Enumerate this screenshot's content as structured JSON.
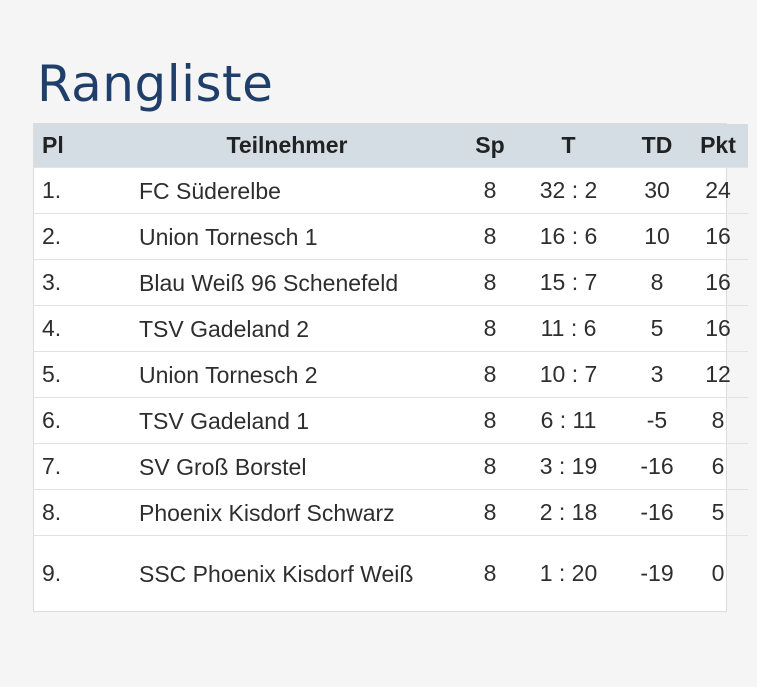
{
  "page": {
    "title": "Rangliste"
  },
  "table": {
    "headers": {
      "pl": "Pl",
      "teilnehmer": "Teilnehmer",
      "sp": "Sp",
      "t": "T",
      "td": "TD",
      "pkt": "Pkt"
    },
    "rows": [
      {
        "pl": "1.",
        "name": "FC Süderelbe",
        "sp": "8",
        "t": "32 : 2",
        "td": "30",
        "pkt": "24"
      },
      {
        "pl": "2.",
        "name": "Union Tornesch 1",
        "sp": "8",
        "t": "16 : 6",
        "td": "10",
        "pkt": "16"
      },
      {
        "pl": "3.",
        "name": "Blau Weiß 96 Schenefeld",
        "sp": "8",
        "t": "15 : 7",
        "td": "8",
        "pkt": "16"
      },
      {
        "pl": "4.",
        "name": "TSV Gadeland 2",
        "sp": "8",
        "t": "11 : 6",
        "td": "5",
        "pkt": "16"
      },
      {
        "pl": "5.",
        "name": "Union Tornesch 2",
        "sp": "8",
        "t": "10 : 7",
        "td": "3",
        "pkt": "12"
      },
      {
        "pl": "6.",
        "name": "TSV Gadeland 1",
        "sp": "8",
        "t": "6 : 11",
        "td": "-5",
        "pkt": "8"
      },
      {
        "pl": "7.",
        "name": "SV Groß Borstel",
        "sp": "8",
        "t": "3 : 19",
        "td": "-16",
        "pkt": "6"
      },
      {
        "pl": "8.",
        "name": "Phoenix Kisdorf Schwarz",
        "sp": "8",
        "t": "2 : 18",
        "td": "-16",
        "pkt": "5"
      },
      {
        "pl": "9.",
        "name": "SSC Phoenix Kisdorf Weiß",
        "sp": "8",
        "t": "1 : 20",
        "td": "-19",
        "pkt": "0"
      }
    ]
  },
  "colors": {
    "title": "#1f3f6a",
    "header_bg": "#d4dce4",
    "background": "#f5f5f5"
  }
}
